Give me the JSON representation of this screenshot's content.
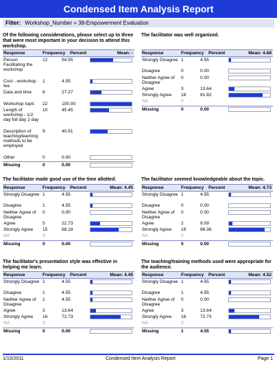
{
  "report_title": "Condensed Item Analysis Report",
  "filter_label": "Filter:",
  "filter_value": "Workshop_Number = 38-Empowerment Evaluation",
  "headers": {
    "response": "Response",
    "frequency": "Frequency",
    "percent": "Percent"
  },
  "sections": [
    {
      "question": "Of the following considerations, please select up to three that were most important in your decision to attend this workshop.",
      "mean": "Mean: -",
      "rows": [
        {
          "label": "Person Facilitating the workshop",
          "freq": "12",
          "pct": "54.55",
          "value": 54.55,
          "lines": 4
        },
        {
          "label": "Cost - workshop fee",
          "freq": "1",
          "pct": "4.55",
          "value": 4.55,
          "lines": 2
        },
        {
          "label": "Data and time",
          "freq": "6",
          "pct": "27.27",
          "value": 27.27,
          "lines": 2
        },
        {
          "label": "Workshop topic",
          "freq": "22",
          "pct": "100.00",
          "value": 100.0,
          "lines": 1
        },
        {
          "label": "Length of workshop - 1/2 day full day 2 day",
          "freq": "10",
          "pct": "45.45",
          "value": 45.45,
          "lines": 4
        },
        {
          "label": "Description of teaching/learning methods to be employed",
          "freq": "9",
          "pct": "40.91",
          "value": 40.91,
          "lines": 5
        },
        {
          "label": "Other",
          "freq": "0",
          "pct": "0.00",
          "value": 0,
          "lines": 1
        }
      ],
      "missing": {
        "freq": "0",
        "pct": "0.00",
        "value": 0
      }
    },
    {
      "question": "The facilitator was well organized.",
      "mean": "Mean: 4.68",
      "rows": [
        {
          "label": "Strongly Disagree",
          "freq": "1",
          "pct": "4.55",
          "value": 4.55,
          "lines": 2
        },
        {
          "label": "Disagree",
          "freq": "0",
          "pct": "0.00",
          "value": 0,
          "lines": 1
        },
        {
          "label": "Neither Agree of Disagree",
          "freq": "0",
          "pct": "0.00",
          "value": 0,
          "lines": 2
        },
        {
          "label": "Agree",
          "freq": "3",
          "pct": "13.64",
          "value": 13.64,
          "lines": 1
        },
        {
          "label": "Strongly Agree",
          "freq": "18",
          "pct": "81.82",
          "value": 81.82,
          "lines": 1
        },
        {
          "label": "NA",
          "freq": "0",
          "pct": "",
          "value": null,
          "lines": 1,
          "na": true
        }
      ],
      "missing": {
        "freq": "0",
        "pct": "0.00",
        "value": 0
      }
    },
    {
      "question": "The facilitator made good use of the time allotted.",
      "mean": "Mean: 4.45",
      "rows": [
        {
          "label": "Strongly Disagree",
          "freq": "1",
          "pct": "4.55",
          "value": 4.55,
          "lines": 2
        },
        {
          "label": "Disagree",
          "freq": "1",
          "pct": "4.55",
          "value": 4.55,
          "lines": 1
        },
        {
          "label": "Neither Agree of Disagree",
          "freq": "0",
          "pct": "0.00",
          "value": 0,
          "lines": 2
        },
        {
          "label": "Agree",
          "freq": "5",
          "pct": "22.73",
          "value": 22.73,
          "lines": 1
        },
        {
          "label": "Strongly Agree",
          "freq": "15",
          "pct": "68.18",
          "value": 68.18,
          "lines": 1
        },
        {
          "label": "NA",
          "freq": "0",
          "pct": "",
          "value": null,
          "lines": 1,
          "na": true
        }
      ],
      "missing": {
        "freq": "0",
        "pct": "0.00",
        "value": 0
      }
    },
    {
      "question": "The facilitator seemed knowledgeable about the topic.",
      "mean": "Mean: 4.73",
      "rows": [
        {
          "label": "Strongly Disagree",
          "freq": "1",
          "pct": "4.55",
          "value": 4.55,
          "lines": 2
        },
        {
          "label": "Disagree",
          "freq": "0",
          "pct": "0.00",
          "value": 0,
          "lines": 1
        },
        {
          "label": "Neither Agree of Disagree",
          "freq": "0",
          "pct": "0.00",
          "value": 0,
          "lines": 2
        },
        {
          "label": "Agree",
          "freq": "2",
          "pct": "9.09",
          "value": 9.09,
          "lines": 1
        },
        {
          "label": "Strongly Agree",
          "freq": "19",
          "pct": "86.36",
          "value": 86.36,
          "lines": 1
        },
        {
          "label": "NA",
          "freq": "0",
          "pct": "",
          "value": null,
          "lines": 1,
          "na": true
        }
      ],
      "missing": {
        "freq": "0",
        "pct": "0.00",
        "value": 0
      }
    },
    {
      "question": "The facilitator's presentation style was effective in helping me learn.",
      "mean": "Mean: 4.45",
      "rows": [
        {
          "label": "Strongly Disagree",
          "freq": "1",
          "pct": "4.55",
          "value": 4.55,
          "lines": 2
        },
        {
          "label": "Disagree",
          "freq": "1",
          "pct": "4.55",
          "value": 4.55,
          "lines": 1
        },
        {
          "label": "Neither Agree of Disagree",
          "freq": "1",
          "pct": "4.55",
          "value": 4.55,
          "lines": 2
        },
        {
          "label": "Agree",
          "freq": "3",
          "pct": "13.64",
          "value": 13.64,
          "lines": 1
        },
        {
          "label": "Strongly Agree",
          "freq": "16",
          "pct": "72.73",
          "value": 72.73,
          "lines": 1
        },
        {
          "label": "NA",
          "freq": "0",
          "pct": "",
          "value": null,
          "lines": 1,
          "na": true
        }
      ],
      "missing": {
        "freq": "0",
        "pct": "0.00",
        "value": 0
      }
    },
    {
      "question": "The teaching/training methods used were appropriate for the audience.",
      "mean": "Mean: 4.52",
      "rows": [
        {
          "label": "Strongly Disagree",
          "freq": "1",
          "pct": "4.55",
          "value": 4.55,
          "lines": 2
        },
        {
          "label": "Disagree",
          "freq": "1",
          "pct": "4.55",
          "value": 4.55,
          "lines": 1
        },
        {
          "label": "Neither Agree of Disagree",
          "freq": "0",
          "pct": "0.00",
          "value": 0,
          "lines": 2
        },
        {
          "label": "Agree",
          "freq": "3",
          "pct": "13.64",
          "value": 13.64,
          "lines": 1
        },
        {
          "label": "Strongly Agree",
          "freq": "16",
          "pct": "72.73",
          "value": 72.73,
          "lines": 1
        },
        {
          "label": "NA",
          "freq": "0",
          "pct": "",
          "value": null,
          "lines": 1,
          "na": true
        }
      ],
      "missing": {
        "freq": "1",
        "pct": "4.55",
        "value": 4.55
      }
    }
  ],
  "missing_label": "Missing",
  "footer": {
    "date": "1/10/2011",
    "center": "Condensed Item Analysis Report",
    "page": "Page 1"
  },
  "colors": {
    "accent": "#1f3bd6",
    "header_bg": "#dfe5f4"
  }
}
